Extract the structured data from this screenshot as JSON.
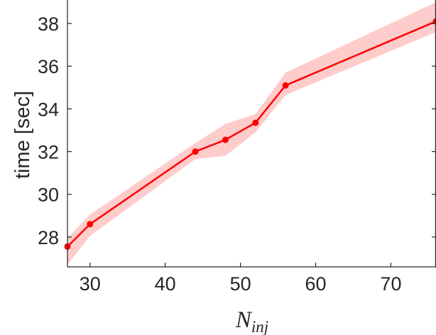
{
  "chart_data": {
    "type": "line",
    "ylabel": "time [sec]",
    "xlabel": {
      "main": "N",
      "sub": "inj"
    },
    "xlim": [
      27,
      76
    ],
    "ylim": [
      26.6,
      39.1
    ],
    "xticks": [
      30,
      40,
      50,
      60,
      70
    ],
    "yticks": [
      28,
      30,
      32,
      34,
      36,
      38
    ],
    "grid": false,
    "series": [
      {
        "color": "#ff0000",
        "band_color": "#ffcccc",
        "x": [
          27,
          30,
          44,
          48,
          52,
          56,
          76
        ],
        "y": [
          27.55,
          28.6,
          32.0,
          32.55,
          33.35,
          35.1,
          38.1
        ],
        "lower": [
          26.7,
          28.05,
          31.65,
          31.8,
          32.9,
          34.65,
          37.6
        ],
        "upper": [
          27.95,
          29.05,
          32.4,
          33.3,
          33.75,
          35.7,
          39.0
        ]
      }
    ]
  }
}
